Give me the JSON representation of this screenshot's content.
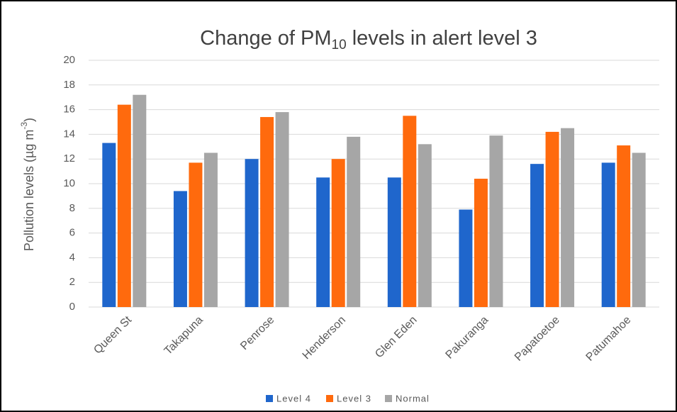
{
  "chart_data": {
    "type": "bar",
    "title": {
      "main": "Change of PM",
      "subscript": "10",
      "rest": " levels in alert level 3"
    },
    "y_label": {
      "main": "Pollution levels (µg m",
      "superscript": "-3",
      "rest": ")"
    },
    "categories": [
      "Queen St",
      "Takapuna",
      "Penrose",
      "Henderson",
      "Glen Eden",
      "Pakuranga",
      "Papatoetoe",
      "Patumahoe"
    ],
    "series": [
      {
        "name": "Level 4",
        "color": "#1f66cc",
        "values": [
          13.3,
          9.4,
          12.0,
          10.5,
          10.5,
          7.9,
          11.6,
          11.7
        ]
      },
      {
        "name": "Level 3",
        "color": "#ff6a0d",
        "values": [
          16.4,
          11.7,
          15.4,
          12.0,
          15.5,
          10.4,
          14.2,
          13.1
        ]
      },
      {
        "name": "Normal",
        "color": "#a6a6a6",
        "values": [
          17.2,
          12.5,
          15.8,
          13.8,
          13.2,
          13.9,
          14.5,
          12.5
        ]
      }
    ],
    "ylim": [
      0,
      20
    ],
    "yticks": [
      0,
      2,
      4,
      6,
      8,
      10,
      12,
      14,
      16,
      18,
      20
    ],
    "grid": true,
    "legend": "bottom"
  }
}
